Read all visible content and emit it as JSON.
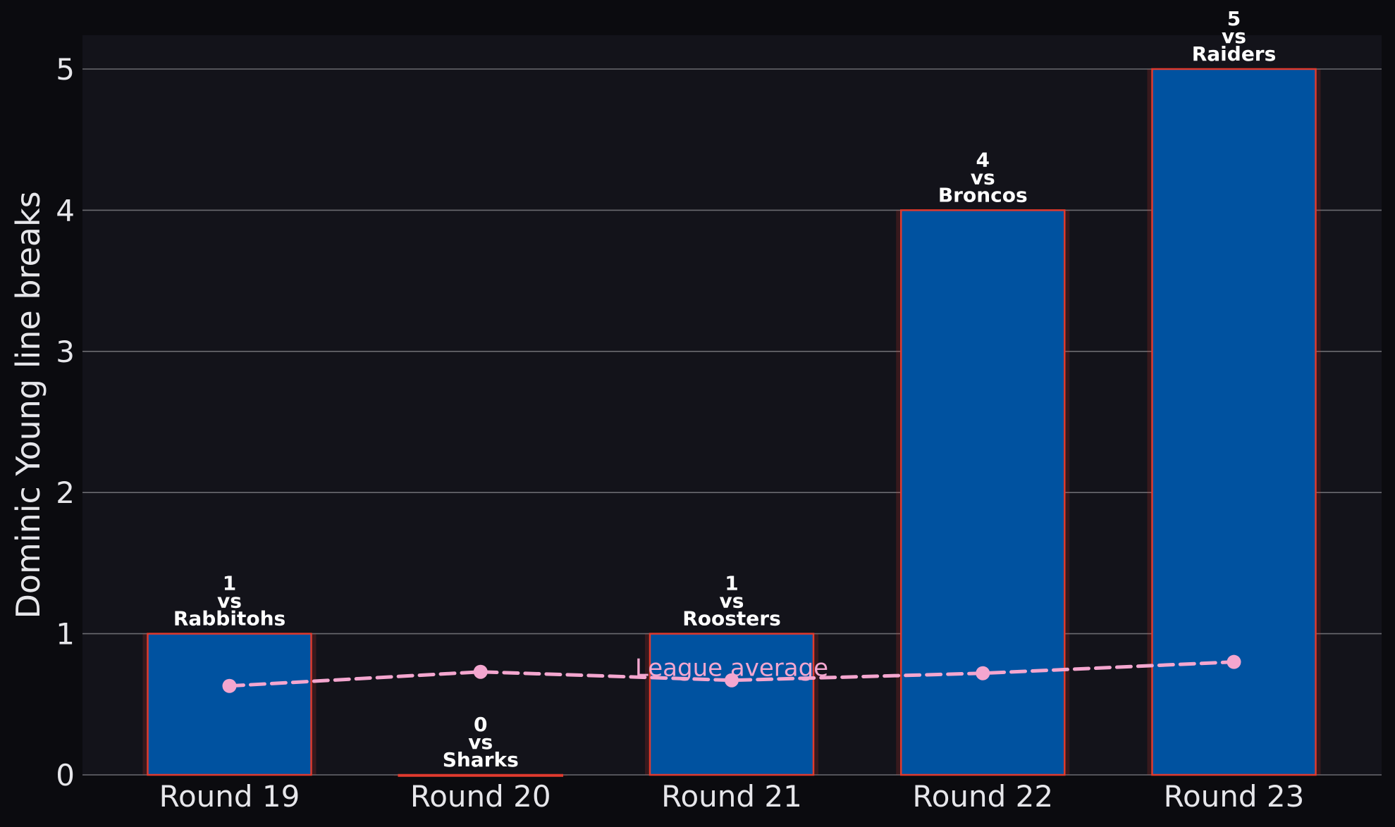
{
  "chart_data": {
    "type": "bar",
    "categories": [
      "Round 19",
      "Round 20",
      "Round 21",
      "Round 22",
      "Round 23"
    ],
    "values": [
      1,
      0,
      1,
      4,
      5
    ],
    "opponents": [
      "Rabbitohs",
      "Sharks",
      "Roosters",
      "Broncos",
      "Raiders"
    ],
    "bar_labels": [
      [
        "1",
        "vs",
        "Rabbitohs"
      ],
      [
        "0",
        "vs",
        "Sharks"
      ],
      [
        "1",
        "vs",
        "Roosters"
      ],
      [
        "4",
        "vs",
        "Broncos"
      ],
      [
        "5",
        "vs",
        "Raiders"
      ]
    ],
    "line_series": {
      "name": "League average",
      "values": [
        0.63,
        0.73,
        0.67,
        0.72,
        0.8
      ],
      "style": "dashed",
      "color": "#f4a6cf",
      "label_at_category": "Round 21"
    },
    "ylabel": "Dominic Young line breaks",
    "xlabel": "",
    "ylim": [
      0,
      5.25
    ],
    "yticks": [
      0,
      1,
      2,
      3,
      4,
      5
    ],
    "grid": "horizontal",
    "colors": {
      "page_background": "#0b0b0f",
      "plot_background": "#13131a",
      "bar_fill": "#0052a0",
      "bar_edge": "#e03a2e",
      "grid": "#6b6b70",
      "text": "#e6e6ea"
    }
  }
}
